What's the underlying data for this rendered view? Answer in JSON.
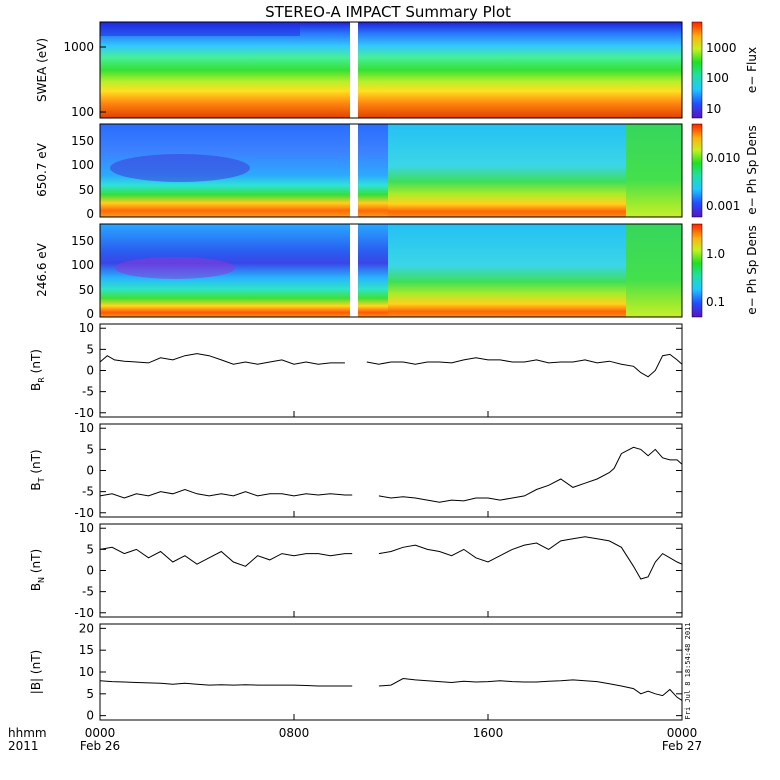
{
  "title": "STEREO-A IMPACT Summary Plot",
  "footer": {
    "left_label": "hhmm",
    "left_year": "2011",
    "ticks": [
      "0000",
      "0800",
      "1600",
      "0000"
    ],
    "dates": [
      "Feb 26",
      "Feb 27"
    ]
  },
  "timestamp": "Fri Jul  8 18:54:48 2011",
  "colors": {
    "trace": "#000000",
    "axis": "#000000",
    "gap": "#ffffff"
  },
  "chart_data": [
    {
      "type": "heatmap",
      "ylabel": "SWEA (eV)",
      "cbar_label": "e− Flux",
      "ylog": true,
      "ylim": [
        95,
        2000
      ],
      "yticks": [
        "1000",
        "100"
      ],
      "cbar_ticks": [
        "1000",
        "100",
        "10"
      ],
      "data_gap_hours": [
        10.1,
        10.4
      ]
    },
    {
      "type": "heatmap",
      "ylabel": "650.7 eV",
      "cbar_label": "e− Ph Sp Dens",
      "ylim": [
        -10,
        175
      ],
      "yticks": [
        "150",
        "100",
        "50",
        "0"
      ],
      "cbar_ticks": [
        "0.010",
        "0.001"
      ],
      "data_gap_hours": [
        10.1,
        10.4
      ]
    },
    {
      "type": "heatmap",
      "ylabel": "246.6 eV",
      "cbar_label": "e− Ph Sp Dens",
      "ylim": [
        -10,
        175
      ],
      "yticks": [
        "150",
        "100",
        "50",
        "0"
      ],
      "cbar_ticks": [
        "1.0",
        "0.1"
      ],
      "data_gap_hours": [
        10.1,
        10.4
      ]
    },
    {
      "type": "line",
      "ylabel_main": "B",
      "ylabel_sub": "R",
      "ylabel_unit": " (nT)",
      "ylim": [
        -11,
        11
      ],
      "yticks": [
        "10",
        "5",
        "0",
        "-5",
        "-10"
      ],
      "x_hours": [
        0,
        0.3,
        0.6,
        1,
        1.5,
        2,
        2.5,
        3,
        3.5,
        4,
        4.5,
        5,
        5.5,
        6,
        6.5,
        7,
        7.5,
        8,
        8.5,
        9,
        9.5,
        10.1,
        10.4,
        11,
        11.5,
        12,
        12.5,
        13,
        13.5,
        14,
        14.5,
        15,
        15.5,
        16,
        16.5,
        17,
        17.5,
        18,
        18.5,
        19,
        19.5,
        20,
        20.5,
        21,
        21.5,
        22,
        22.3,
        22.6,
        22.9,
        23.2,
        23.5,
        23.8,
        24
      ],
      "y": [
        2,
        3.5,
        2.5,
        2.2,
        2,
        1.8,
        3,
        2.5,
        3.5,
        4,
        3.5,
        2.5,
        1.5,
        2,
        1.5,
        2,
        2.5,
        1.5,
        2,
        1.5,
        1.8,
        1.8,
        null,
        2,
        1.5,
        2,
        2,
        1.5,
        2,
        2,
        1.8,
        2.5,
        3,
        2.5,
        2.5,
        2,
        2,
        2.5,
        1.8,
        2,
        2,
        2.5,
        1.8,
        2.2,
        1.5,
        1,
        -0.5,
        -1.5,
        0,
        3.5,
        3.8,
        2.5,
        1.5
      ]
    },
    {
      "type": "line",
      "ylabel_main": "B",
      "ylabel_sub": "T",
      "ylabel_unit": " (nT)",
      "ylim": [
        -11,
        11
      ],
      "yticks": [
        "10",
        "5",
        "0",
        "-5",
        "-10"
      ],
      "x_hours": [
        0,
        0.5,
        1,
        1.5,
        2,
        2.5,
        3,
        3.5,
        4,
        4.5,
        5,
        5.5,
        6,
        6.5,
        7,
        7.5,
        8,
        8.5,
        9,
        9.5,
        10.1,
        10.4,
        11,
        11.5,
        12,
        12.5,
        13,
        13.5,
        14,
        14.5,
        15,
        15.5,
        16,
        16.5,
        17,
        17.5,
        18,
        18.5,
        19,
        19.5,
        20,
        20.5,
        21,
        21.2,
        21.5,
        22,
        22.3,
        22.6,
        22.9,
        23.2,
        23.5,
        23.8,
        24
      ],
      "y": [
        -6,
        -5.5,
        -6.5,
        -5.5,
        -6,
        -5,
        -5.5,
        -4.5,
        -5.5,
        -6,
        -5.5,
        -6,
        -5,
        -6,
        -5.5,
        -5.5,
        -6,
        -5.5,
        -5.8,
        -5.5,
        -5.8,
        -5.8,
        null,
        -6,
        -6.5,
        -6.2,
        -6.5,
        -7,
        -7.5,
        -7,
        -7.2,
        -6.5,
        -6.5,
        -7,
        -6.5,
        -6,
        -4.5,
        -3.5,
        -2,
        -4,
        -3,
        -2,
        -0.5,
        0.5,
        4,
        5.5,
        5,
        3.5,
        5,
        3,
        2.5,
        2.5,
        1.5
      ]
    },
    {
      "type": "line",
      "ylabel_main": "B",
      "ylabel_sub": "N",
      "ylabel_unit": " (nT)",
      "ylim": [
        -11,
        11
      ],
      "yticks": [
        "10",
        "5",
        "0",
        "-5",
        "-10"
      ],
      "x_hours": [
        0,
        0.5,
        1,
        1.5,
        2,
        2.5,
        3,
        3.5,
        4,
        4.5,
        5,
        5.5,
        6,
        6.5,
        7,
        7.5,
        8,
        8.5,
        9,
        9.5,
        10.1,
        10.4,
        11,
        11.5,
        12,
        12.5,
        13,
        13.5,
        14,
        14.5,
        15,
        15.5,
        16,
        16.5,
        17,
        17.5,
        18,
        18.5,
        19,
        19.5,
        20,
        20.5,
        21,
        21.5,
        22,
        22.3,
        22.6,
        22.9,
        23.2,
        23.5,
        23.8,
        24
      ],
      "y": [
        5,
        5.5,
        4,
        5,
        3,
        4.5,
        2,
        3.5,
        1.5,
        3,
        4.5,
        2,
        1,
        3.5,
        2.5,
        4,
        3.5,
        4,
        4,
        3.5,
        4,
        4,
        null,
        4,
        4.5,
        5.5,
        6,
        5,
        4.5,
        3.5,
        5,
        3,
        2,
        3.5,
        5,
        6,
        6.5,
        5,
        7,
        7.5,
        8,
        7.5,
        7,
        5.5,
        1,
        -2,
        -1.5,
        2,
        4,
        3,
        2,
        1.5
      ]
    },
    {
      "type": "line",
      "ylabel": "|B| (nT)",
      "ylim": [
        -1,
        21
      ],
      "yticks": [
        "20",
        "15",
        "10",
        "5",
        "0"
      ],
      "x_hours": [
        0,
        0.5,
        1,
        1.5,
        2,
        2.5,
        3,
        3.5,
        4,
        4.5,
        5,
        5.5,
        6,
        6.5,
        7,
        7.5,
        8,
        8.5,
        9,
        9.5,
        10.1,
        10.4,
        11,
        11.5,
        12,
        12.5,
        13,
        13.5,
        14,
        14.5,
        15,
        15.5,
        16,
        16.5,
        17,
        17.5,
        18,
        18.5,
        19,
        19.5,
        20,
        20.5,
        21,
        21.5,
        22,
        22.3,
        22.6,
        22.9,
        23.2,
        23.5,
        23.8,
        24
      ],
      "y": [
        8,
        7.8,
        7.7,
        7.6,
        7.5,
        7.4,
        7.2,
        7.4,
        7.2,
        7.0,
        7.1,
        7.0,
        7.1,
        7.0,
        7.0,
        7.0,
        7.0,
        6.9,
        6.8,
        6.8,
        6.8,
        6.8,
        null,
        6.8,
        7.0,
        8.5,
        8.2,
        8.0,
        7.8,
        7.6,
        7.9,
        7.7,
        7.8,
        8.0,
        7.8,
        7.7,
        7.7,
        7.9,
        8.0,
        8.2,
        8.0,
        7.8,
        7.3,
        6.8,
        6.2,
        5.0,
        5.6,
        5.0,
        4.6,
        6.0,
        4.2,
        3.5
      ]
    }
  ]
}
